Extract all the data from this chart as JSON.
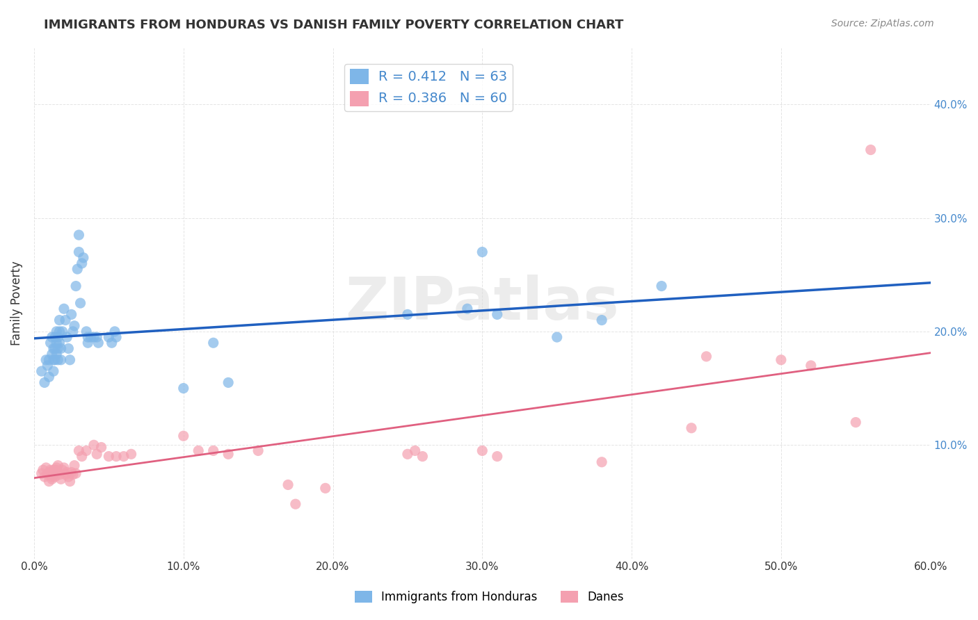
{
  "title": "IMMIGRANTS FROM HONDURAS VS DANISH FAMILY POVERTY CORRELATION CHART",
  "source": "Source: ZipAtlas.com",
  "xlabel_bottom": "",
  "ylabel": "Family Poverty",
  "xlim": [
    0,
    0.6
  ],
  "ylim": [
    0,
    0.45
  ],
  "xtick_labels": [
    "0.0%",
    "10.0%",
    "20.0%",
    "30.0%",
    "40.0%",
    "50.0%",
    "60.0%"
  ],
  "xtick_vals": [
    0.0,
    0.1,
    0.2,
    0.3,
    0.4,
    0.5,
    0.6
  ],
  "ytick_labels_left": [
    "",
    "10.0%",
    "20.0%",
    "30.0%",
    "40.0%"
  ],
  "ytick_labels_right": [
    "",
    "10.0%",
    "20.0%",
    "30.0%",
    "40.0%"
  ],
  "ytick_vals": [
    0.0,
    0.1,
    0.2,
    0.3,
    0.4
  ],
  "blue_color": "#7EB6E8",
  "pink_color": "#F4A0B0",
  "blue_line_color": "#2060C0",
  "pink_line_color": "#E06080",
  "blue_scatter": [
    [
      0.005,
      0.165
    ],
    [
      0.007,
      0.155
    ],
    [
      0.008,
      0.175
    ],
    [
      0.009,
      0.17
    ],
    [
      0.01,
      0.16
    ],
    [
      0.01,
      0.175
    ],
    [
      0.011,
      0.19
    ],
    [
      0.012,
      0.18
    ],
    [
      0.012,
      0.195
    ],
    [
      0.013,
      0.185
    ],
    [
      0.013,
      0.175
    ],
    [
      0.013,
      0.165
    ],
    [
      0.014,
      0.195
    ],
    [
      0.014,
      0.185
    ],
    [
      0.014,
      0.175
    ],
    [
      0.015,
      0.2
    ],
    [
      0.015,
      0.19
    ],
    [
      0.015,
      0.18
    ],
    [
      0.016,
      0.195
    ],
    [
      0.016,
      0.185
    ],
    [
      0.016,
      0.175
    ],
    [
      0.017,
      0.2
    ],
    [
      0.017,
      0.19
    ],
    [
      0.017,
      0.21
    ],
    [
      0.018,
      0.185
    ],
    [
      0.018,
      0.175
    ],
    [
      0.019,
      0.2
    ],
    [
      0.02,
      0.22
    ],
    [
      0.021,
      0.21
    ],
    [
      0.022,
      0.195
    ],
    [
      0.023,
      0.185
    ],
    [
      0.024,
      0.175
    ],
    [
      0.025,
      0.215
    ],
    [
      0.026,
      0.2
    ],
    [
      0.027,
      0.205
    ],
    [
      0.028,
      0.24
    ],
    [
      0.029,
      0.255
    ],
    [
      0.03,
      0.27
    ],
    [
      0.03,
      0.285
    ],
    [
      0.031,
      0.225
    ],
    [
      0.032,
      0.26
    ],
    [
      0.033,
      0.265
    ],
    [
      0.035,
      0.2
    ],
    [
      0.036,
      0.195
    ],
    [
      0.036,
      0.19
    ],
    [
      0.038,
      0.195
    ],
    [
      0.04,
      0.195
    ],
    [
      0.042,
      0.195
    ],
    [
      0.043,
      0.19
    ],
    [
      0.05,
      0.195
    ],
    [
      0.052,
      0.19
    ],
    [
      0.054,
      0.2
    ],
    [
      0.055,
      0.195
    ],
    [
      0.1,
      0.15
    ],
    [
      0.12,
      0.19
    ],
    [
      0.13,
      0.155
    ],
    [
      0.25,
      0.215
    ],
    [
      0.29,
      0.22
    ],
    [
      0.3,
      0.27
    ],
    [
      0.31,
      0.215
    ],
    [
      0.35,
      0.195
    ],
    [
      0.38,
      0.21
    ],
    [
      0.42,
      0.24
    ]
  ],
  "pink_scatter": [
    [
      0.005,
      0.075
    ],
    [
      0.006,
      0.078
    ],
    [
      0.007,
      0.072
    ],
    [
      0.008,
      0.08
    ],
    [
      0.009,
      0.074
    ],
    [
      0.01,
      0.076
    ],
    [
      0.01,
      0.068
    ],
    [
      0.011,
      0.078
    ],
    [
      0.012,
      0.072
    ],
    [
      0.012,
      0.07
    ],
    [
      0.013,
      0.078
    ],
    [
      0.013,
      0.074
    ],
    [
      0.014,
      0.078
    ],
    [
      0.014,
      0.072
    ],
    [
      0.015,
      0.08
    ],
    [
      0.015,
      0.078
    ],
    [
      0.016,
      0.082
    ],
    [
      0.016,
      0.076
    ],
    [
      0.017,
      0.074
    ],
    [
      0.018,
      0.07
    ],
    [
      0.019,
      0.078
    ],
    [
      0.02,
      0.08
    ],
    [
      0.021,
      0.074
    ],
    [
      0.022,
      0.076
    ],
    [
      0.023,
      0.072
    ],
    [
      0.024,
      0.068
    ],
    [
      0.025,
      0.076
    ],
    [
      0.026,
      0.074
    ],
    [
      0.027,
      0.082
    ],
    [
      0.028,
      0.075
    ],
    [
      0.03,
      0.095
    ],
    [
      0.032,
      0.09
    ],
    [
      0.035,
      0.095
    ],
    [
      0.04,
      0.1
    ],
    [
      0.042,
      0.092
    ],
    [
      0.045,
      0.098
    ],
    [
      0.05,
      0.09
    ],
    [
      0.055,
      0.09
    ],
    [
      0.06,
      0.09
    ],
    [
      0.065,
      0.092
    ],
    [
      0.1,
      0.108
    ],
    [
      0.11,
      0.095
    ],
    [
      0.12,
      0.095
    ],
    [
      0.13,
      0.092
    ],
    [
      0.15,
      0.095
    ],
    [
      0.17,
      0.065
    ],
    [
      0.175,
      0.048
    ],
    [
      0.195,
      0.062
    ],
    [
      0.25,
      0.092
    ],
    [
      0.255,
      0.095
    ],
    [
      0.26,
      0.09
    ],
    [
      0.3,
      0.095
    ],
    [
      0.31,
      0.09
    ],
    [
      0.38,
      0.085
    ],
    [
      0.44,
      0.115
    ],
    [
      0.45,
      0.178
    ],
    [
      0.5,
      0.175
    ],
    [
      0.52,
      0.17
    ],
    [
      0.55,
      0.12
    ],
    [
      0.56,
      0.36
    ]
  ],
  "blue_R": "0.412",
  "blue_N": "63",
  "pink_R": "0.386",
  "pink_N": "60",
  "legend_label_blue": "Immigrants from Honduras",
  "legend_label_pink": "Danes",
  "watermark": "ZIPatlas",
  "background_color": "#ffffff",
  "grid_color": "#dddddd"
}
